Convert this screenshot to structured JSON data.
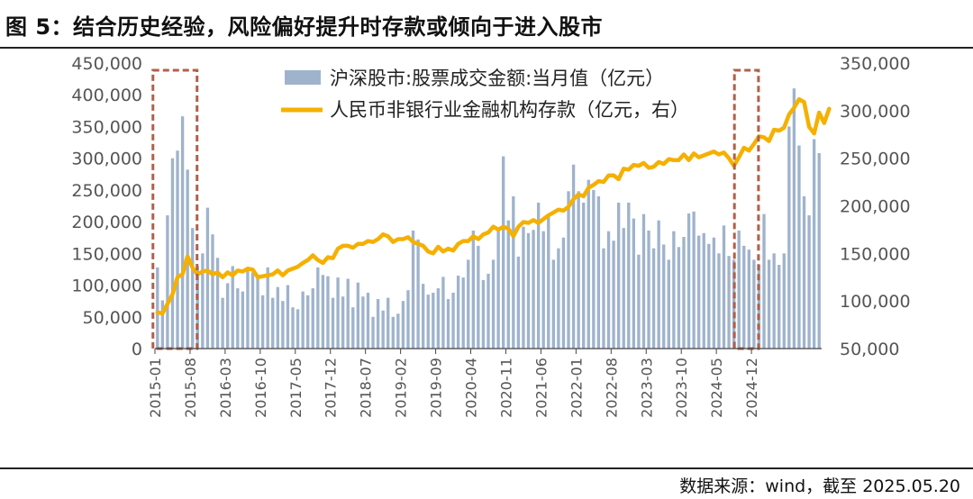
{
  "figure": {
    "title": "图 5：结合历史经验，风险偏好提升时存款或倾向于进入股市",
    "source": "数据来源：wind，截至 2025.05.20"
  },
  "colors": {
    "bar": "#9fb3cc",
    "line": "#f5b000",
    "box": "#b0604a",
    "axis": "#444444",
    "tick_text": "#555555"
  },
  "chart_data": {
    "type": "bar+line",
    "x_tick_labels": [
      "2015-01",
      "2015-08",
      "2016-03",
      "2016-10",
      "2017-05",
      "2017-12",
      "2018-07",
      "2019-02",
      "2019-09",
      "2020-04",
      "2020-11",
      "2021-06",
      "2022-01",
      "2022-08",
      "2023-03",
      "2023-10",
      "2024-05",
      "2024-12"
    ],
    "left_axis": {
      "min": 0,
      "max": 450000,
      "ticks": [
        "0",
        "50,000",
        "100,000",
        "150,000",
        "200,000",
        "250,000",
        "300,000",
        "350,000",
        "400,000",
        "450,000"
      ]
    },
    "right_axis": {
      "min": 50000,
      "max": 350000,
      "ticks": [
        "50,000",
        "100,000",
        "150,000",
        "200,000",
        "250,000",
        "300,000",
        "350,000"
      ]
    },
    "legend": [
      "沪深股市:股票成交金额:当月值（亿元）",
      "人民币非银行业金融机构存款（亿元，右）"
    ],
    "series": [
      {
        "name": "沪深股市:股票成交金额:当月值（亿元）",
        "axis": "left",
        "kind": "bar",
        "start": "2015-01",
        "values": [
          128000,
          76000,
          210000,
          300000,
          312000,
          366000,
          282000,
          190000,
          130000,
          150000,
          222000,
          180000,
          143000,
          80000,
          103000,
          130000,
          95000,
          90000,
          127000,
          120000,
          113000,
          84000,
          128000,
          80000,
          97000,
          75000,
          100000,
          65000,
          62000,
          90000,
          84000,
          95000,
          128000,
          116000,
          114000,
          80000,
          112000,
          82000,
          110000,
          65000,
          104000,
          82000,
          88000,
          50000,
          78000,
          60000,
          80000,
          50000,
          55000,
          75000,
          92000,
          186000,
          172000,
          102000,
          85000,
          88000,
          95000,
          113000,
          78000,
          88000,
          115000,
          112000,
          140000,
          186000,
          162000,
          108000,
          118000,
          140000,
          189000,
          303000,
          202000,
          240000,
          145000,
          192000,
          182000,
          187000,
          230000,
          185000,
          210000,
          140000,
          158000,
          175000,
          248000,
          290000,
          248000,
          230000,
          266000,
          250000,
          240000,
          158000,
          185000,
          170000,
          230000,
          190000,
          230000,
          205000,
          148000,
          212000,
          186000,
          158000,
          202000,
          164000,
          140000,
          185000,
          160000,
          176000,
          213000,
          216000,
          178000,
          182000,
          165000,
          175000,
          150000,
          194000,
          146000,
          140000,
          186000,
          162000,
          156000,
          140000,
          132000,
          212000,
          140000,
          150000,
          132000,
          150000,
          350000,
          410000,
          320000,
          240000,
          210000,
          330000,
          308000
        ],
        "boxed_ranges": [
          [
            "2015-01",
            "2015-08"
          ],
          [
            "2024-09",
            "2024-12"
          ]
        ]
      },
      {
        "name": "人民币非银行业金融机构存款（亿元，右）",
        "axis": "right",
        "kind": "line",
        "start": "2015-01",
        "values": [
          88000,
          87000,
          97000,
          107000,
          125000,
          128000,
          147000,
          135000,
          128000,
          131000,
          132000,
          128000,
          130000,
          125000,
          130000,
          127000,
          132000,
          131000,
          134000,
          133000,
          125000,
          126000,
          127000,
          128000,
          132000,
          127000,
          132000,
          134000,
          136000,
          140000,
          143000,
          148000,
          143000,
          140000,
          146000,
          145000,
          155000,
          158000,
          158000,
          156000,
          160000,
          160000,
          163000,
          162000,
          165000,
          170000,
          168000,
          162000,
          165000,
          165000,
          167000,
          162000,
          160000,
          158000,
          152000,
          150000,
          157000,
          152000,
          155000,
          153000,
          160000,
          163000,
          163000,
          168000,
          165000,
          170000,
          172000,
          178000,
          175000,
          178000,
          176000,
          168000,
          178000,
          183000,
          182000,
          185000,
          182000,
          186000,
          190000,
          193000,
          196000,
          195000,
          199000,
          207000,
          212000,
          210000,
          219000,
          222000,
          226000,
          225000,
          232000,
          232000,
          228000,
          239000,
          238000,
          243000,
          242000,
          245000,
          240000,
          241000,
          246000,
          244000,
          249000,
          248000,
          248000,
          254000,
          248000,
          255000,
          251000,
          253000,
          255000,
          257000,
          254000,
          256000,
          250000,
          242000,
          251000,
          261000,
          258000,
          265000,
          273000,
          272000,
          268000,
          280000,
          279000,
          282000,
          296000,
          303000,
          312000,
          309000,
          283000,
          276000,
          298000,
          287000,
          302000
        ]
      }
    ]
  }
}
